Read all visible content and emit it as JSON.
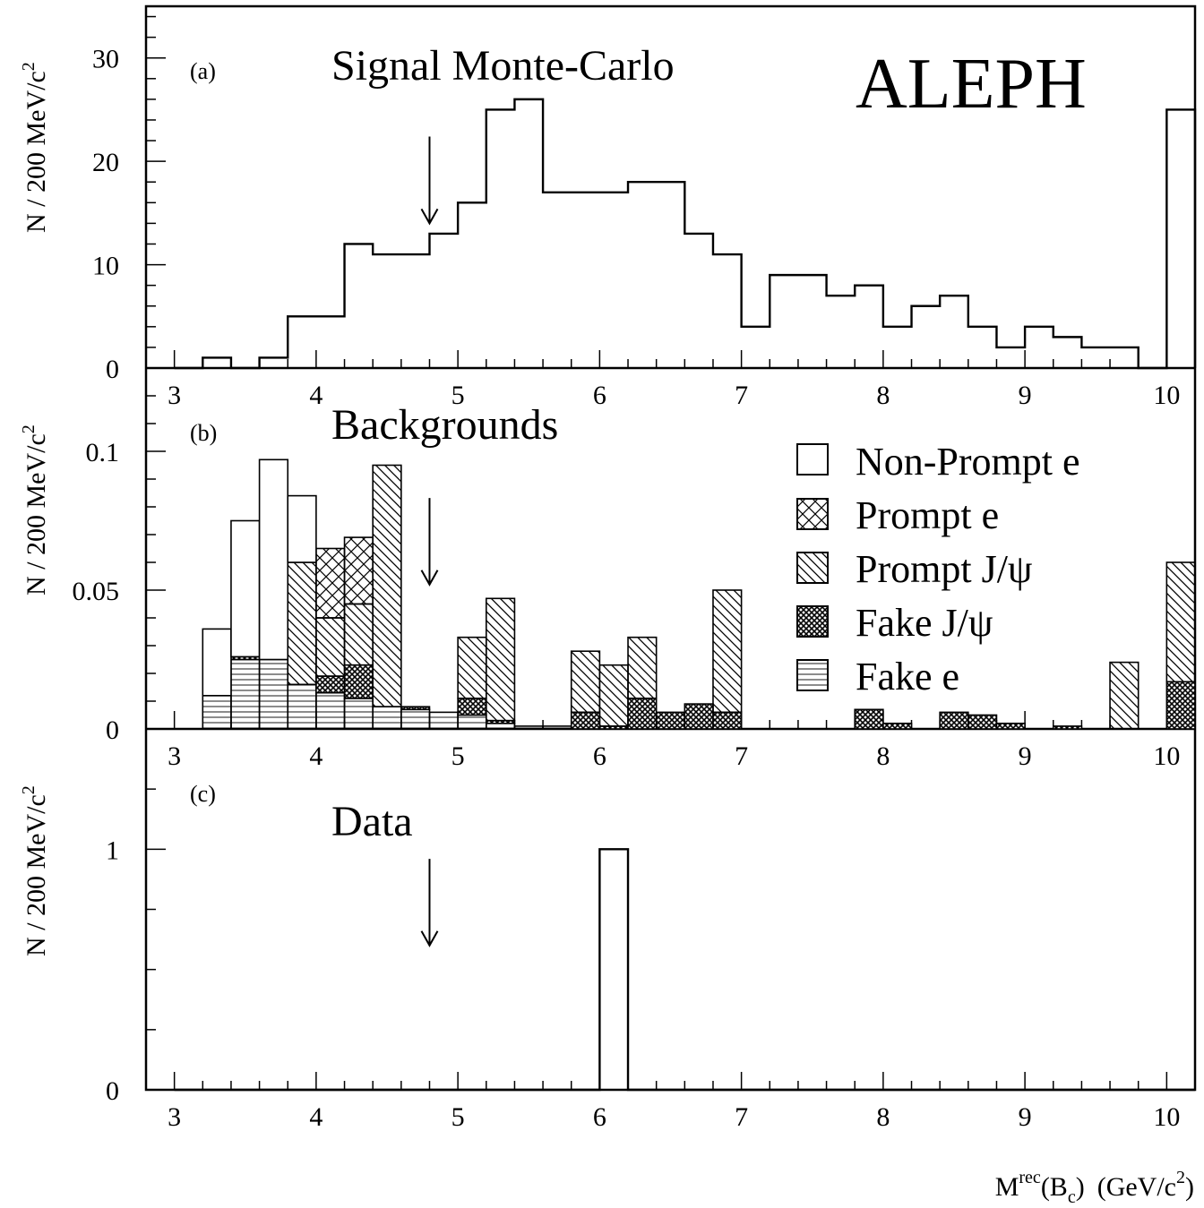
{
  "brand": "ALEPH",
  "x_axis": {
    "title_main": "M",
    "title_sup": "rec",
    "title_paren_open": "(B",
    "title_sub": "c",
    "title_paren_close": ")",
    "title_unit_open": "(GeV/c",
    "title_unit_sup": "2",
    "title_unit_close": ")",
    "range": [
      2.8,
      10.2
    ],
    "tick_labels": [
      "3",
      "4",
      "5",
      "6",
      "7",
      "8",
      "9",
      "10"
    ]
  },
  "y_axis_title_main": "N / 200 MeV/c",
  "y_axis_title_sup": "2",
  "cut_value": 4.8,
  "chart_data": [
    {
      "type": "bar",
      "panel": "a",
      "tag": "(a)",
      "title": "Signal Monte-Carlo",
      "bin_width": 0.2,
      "ylim": [
        0,
        35
      ],
      "tick_labels": [
        "0",
        "10",
        "20",
        "30"
      ],
      "bin_edges_start": 3.0,
      "values": [
        0,
        1,
        0,
        1,
        5,
        5,
        12,
        11,
        11,
        13,
        16,
        25,
        26,
        17,
        17,
        17,
        18,
        18,
        13,
        11,
        4,
        9,
        9,
        7,
        8,
        4,
        6,
        7,
        4,
        2,
        4,
        3,
        2,
        2,
        0,
        25
      ]
    },
    {
      "type": "bar",
      "panel": "b",
      "tag": "(b)",
      "title": "Backgrounds",
      "stacked": true,
      "bin_width": 0.2,
      "ylim": [
        0,
        0.13
      ],
      "tick_labels": [
        "0",
        "0.05",
        "0.1"
      ],
      "bin_edges_start": 3.0,
      "legend_position": "top-right",
      "series": [
        {
          "name": "Fake e",
          "pattern": "hlines",
          "values": [
            0,
            0.012,
            0.025,
            0.025,
            0.016,
            0.013,
            0.011,
            0.008,
            0.007,
            0.006,
            0.005,
            0.002,
            0.001,
            0.001,
            0,
            0,
            0,
            0,
            0,
            0,
            0,
            0,
            0,
            0,
            0,
            0,
            0,
            0,
            0,
            0,
            0,
            0,
            0,
            0,
            0,
            0
          ]
        },
        {
          "name": "Fake J/ψ",
          "pattern": "dense-crosshatch",
          "values": [
            0,
            0,
            0.001,
            0,
            0,
            0.006,
            0.012,
            0,
            0.001,
            0,
            0.006,
            0.001,
            0,
            0,
            0.006,
            0.001,
            0.011,
            0.006,
            0.009,
            0.006,
            0,
            0,
            0,
            0,
            0.007,
            0.002,
            0,
            0.006,
            0.005,
            0.002,
            0,
            0.001,
            0,
            0,
            0,
            0.017
          ]
        },
        {
          "name": "Prompt J/ψ",
          "pattern": "diagonal",
          "values": [
            0,
            0,
            0,
            0,
            0.044,
            0.021,
            0.022,
            0.087,
            0,
            0,
            0.022,
            0.044,
            0,
            0,
            0.022,
            0.022,
            0.022,
            0,
            0,
            0.044,
            0,
            0,
            0,
            0,
            0,
            0,
            0,
            0,
            0,
            0,
            0,
            0,
            0,
            0.024,
            0,
            0.043
          ]
        },
        {
          "name": "Prompt e",
          "pattern": "crosshatch",
          "values": [
            0,
            0,
            0,
            0,
            0,
            0.025,
            0.024,
            0,
            0,
            0,
            0,
            0,
            0,
            0,
            0,
            0,
            0,
            0,
            0,
            0,
            0,
            0,
            0,
            0,
            0,
            0,
            0,
            0,
            0,
            0,
            0,
            0,
            0,
            0,
            0,
            0
          ]
        },
        {
          "name": "Non-Prompt e",
          "pattern": "none",
          "values": [
            0,
            0.024,
            0.049,
            0.072,
            0.024,
            0,
            0,
            0,
            0,
            0,
            0,
            0,
            0,
            0,
            0,
            0,
            0,
            0,
            0,
            0,
            0,
            0,
            0,
            0,
            0,
            0,
            0,
            0,
            0,
            0,
            0,
            0,
            0,
            0,
            0,
            0
          ]
        }
      ],
      "legend_order": [
        "Non-Prompt e",
        "Prompt e",
        "Prompt J/ψ",
        "Fake J/ψ",
        "Fake e"
      ]
    },
    {
      "type": "bar",
      "panel": "c",
      "tag": "(c)",
      "title": "Data",
      "bin_width": 0.2,
      "ylim": [
        0,
        1.5
      ],
      "tick_labels": [
        "0",
        "1"
      ],
      "bin_edges_start": 3.0,
      "values": [
        0,
        0,
        0,
        0,
        0,
        0,
        0,
        0,
        0,
        0,
        0,
        0,
        0,
        0,
        0,
        1,
        0,
        0,
        0,
        0,
        0,
        0,
        0,
        0,
        0,
        0,
        0,
        0,
        0,
        0,
        0,
        0,
        0,
        0,
        0,
        0
      ]
    }
  ]
}
